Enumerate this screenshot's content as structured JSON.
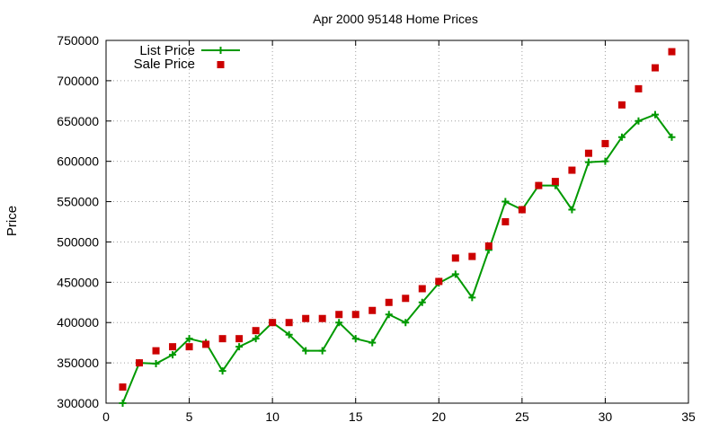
{
  "chart_data": {
    "type": "line",
    "title": "Apr 2000 95148 Home Prices",
    "xlabel": "",
    "ylabel": "Price",
    "xlim": [
      0,
      35
    ],
    "ylim": [
      300000,
      750000
    ],
    "x_ticks": [
      0,
      5,
      10,
      15,
      20,
      25,
      30,
      35
    ],
    "y_ticks": [
      300000,
      350000,
      400000,
      450000,
      500000,
      550000,
      600000,
      650000,
      700000,
      750000
    ],
    "grid": true,
    "legend_position": "top-left",
    "series": [
      {
        "name": "List Price",
        "style": "linespoints",
        "marker": "plus",
        "color": "#009900",
        "x": [
          1,
          2,
          3,
          4,
          5,
          6,
          7,
          8,
          9,
          10,
          11,
          12,
          13,
          14,
          15,
          16,
          17,
          18,
          19,
          20,
          21,
          22,
          23,
          24,
          25,
          26,
          27,
          28,
          29,
          30,
          31,
          32,
          33,
          34
        ],
        "y": [
          300000,
          350000,
          349000,
          360000,
          380000,
          375000,
          340000,
          370000,
          380000,
          400000,
          385000,
          365000,
          365000,
          400000,
          380000,
          375000,
          410000,
          400000,
          425000,
          449000,
          460000,
          431000,
          490000,
          550000,
          540000,
          570000,
          570000,
          540000,
          599000,
          600000,
          630000,
          650000,
          658000,
          630000
        ]
      },
      {
        "name": "Sale Price",
        "style": "points",
        "marker": "square",
        "color": "#cc0000",
        "x": [
          1,
          2,
          3,
          4,
          5,
          6,
          7,
          8,
          9,
          10,
          11,
          12,
          13,
          14,
          15,
          16,
          17,
          18,
          19,
          20,
          21,
          22,
          23,
          24,
          25,
          26,
          27,
          28,
          29,
          30,
          31,
          32,
          33,
          34
        ],
        "y": [
          320000,
          350000,
          365000,
          370000,
          370000,
          373000,
          380000,
          380000,
          390000,
          400000,
          400000,
          405000,
          405000,
          410000,
          410000,
          415000,
          425000,
          430000,
          442000,
          451000,
          480000,
          482000,
          495000,
          525000,
          540000,
          570000,
          575000,
          589000,
          610000,
          622000,
          670000,
          690000,
          716000,
          736000
        ]
      }
    ]
  }
}
